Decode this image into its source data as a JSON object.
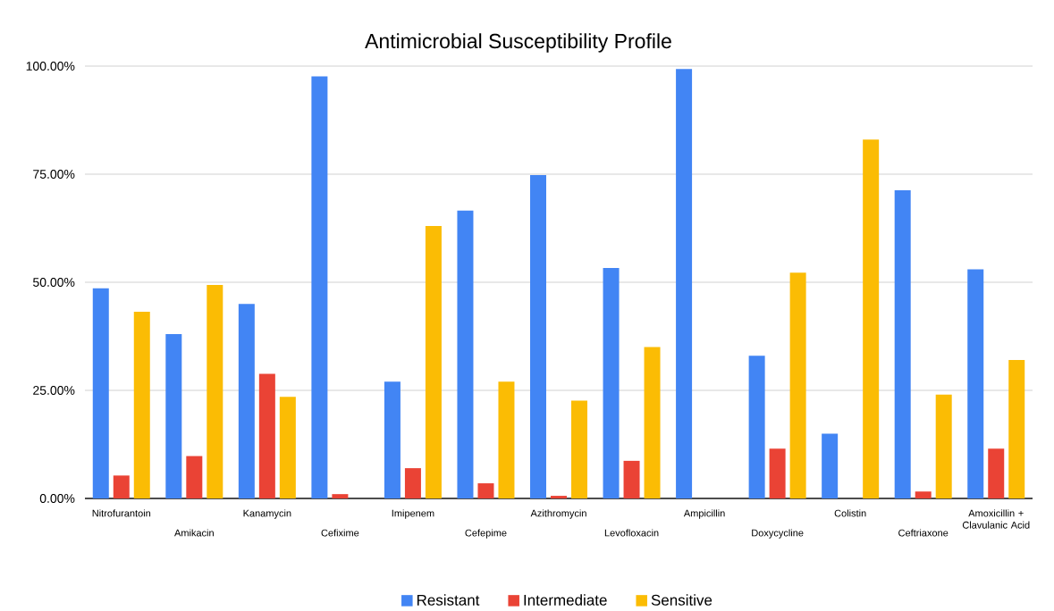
{
  "chart_data": {
    "type": "bar",
    "title": "Antimicrobial Susceptibility Profile",
    "categories": [
      "Nitrofurantoin",
      "Amikacin",
      "Kanamycin",
      "Cefixime",
      "Imipenem",
      "Cefepime",
      "Azithromycin",
      "Levofloxacin",
      "Ampicillin",
      "Doxycycline",
      "Colistin",
      "Ceftriaxone",
      "Amoxicillin + Clavulanic Acid"
    ],
    "series": [
      {
        "name": "Resistant",
        "color": "#4285f4",
        "values": [
          48.6,
          38,
          45,
          97.6,
          27,
          66.6,
          74.8,
          53.3,
          99.3,
          33,
          15,
          71.3,
          53
        ]
      },
      {
        "name": "Intermediate",
        "color": "#ea4335",
        "values": [
          5.3,
          9.8,
          28.8,
          1,
          7,
          3.5,
          0.6,
          8.7,
          0,
          11.5,
          0,
          1.6,
          11.5
        ]
      },
      {
        "name": "Sensitive",
        "color": "#fbbc04",
        "values": [
          43.2,
          49.4,
          23.5,
          0,
          63,
          27,
          22.6,
          35,
          0,
          52.2,
          83,
          24,
          32
        ]
      }
    ],
    "ylim": [
      0,
      100
    ],
    "yticks": [
      {
        "value": 0,
        "label": "0.00%"
      },
      {
        "value": 25,
        "label": "25.00%"
      },
      {
        "value": 50,
        "label": "50.00%"
      },
      {
        "value": 75,
        "label": "75.00%"
      },
      {
        "value": 100,
        "label": "100.00%"
      }
    ],
    "grid": "y",
    "legend": "bottom"
  }
}
